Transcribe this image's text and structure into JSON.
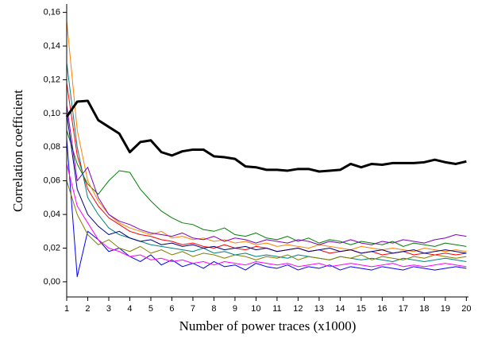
{
  "chart_data": {
    "type": "line",
    "x_label": "Number of power traces (x1000)",
    "y_label": "Correlation coefficient",
    "x": [
      1,
      1.5,
      2,
      2.5,
      3,
      3.5,
      4,
      4.5,
      5,
      5.5,
      6,
      6.5,
      7,
      7.5,
      8,
      8.5,
      9,
      9.5,
      10,
      10.5,
      11,
      11.5,
      12,
      12.5,
      13,
      13.5,
      14,
      14.5,
      15,
      15.5,
      16,
      16.5,
      17,
      17.5,
      18,
      18.5,
      19,
      19.5,
      20
    ],
    "xlim": [
      1,
      20.1
    ],
    "xticks": [
      1,
      2,
      3,
      4,
      5,
      6,
      7,
      8,
      9,
      10,
      11,
      12,
      13,
      14,
      15,
      16,
      17,
      18,
      19,
      20
    ],
    "ylim": [
      -0.009,
      0.165
    ],
    "yticks": [
      {
        "value": 0,
        "label": "0,00"
      },
      {
        "value": 0.02,
        "label": "0,02"
      },
      {
        "value": 0.04,
        "label": "0,04"
      },
      {
        "value": 0.06,
        "label": "0,06"
      },
      {
        "value": 0.08,
        "label": "0,08"
      },
      {
        "value": 0.1,
        "label": "0,10"
      },
      {
        "value": 0.12,
        "label": "0,12"
      },
      {
        "value": 0.14,
        "label": "0,14"
      },
      {
        "value": 0.16,
        "label": "0,16"
      }
    ],
    "series": [
      {
        "color": "#ff0000",
        "width": 1,
        "values": [
          0.118,
          0.075,
          0.055,
          0.045,
          0.038,
          0.034,
          0.03,
          0.028,
          0.027,
          0.025,
          0.024,
          0.022,
          0.023,
          0.021,
          0.02,
          0.022,
          0.02,
          0.019,
          0.021,
          0.02,
          0.018,
          0.019,
          0.02,
          0.018,
          0.019,
          0.017,
          0.018,
          0.019,
          0.017,
          0.018,
          0.016,
          0.017,
          0.018,
          0.016,
          0.017,
          0.016,
          0.017,
          0.016,
          0.017
        ]
      },
      {
        "color": "#0000ff",
        "width": 1,
        "values": [
          0.085,
          0.003,
          0.03,
          0.025,
          0.018,
          0.02,
          0.015,
          0.012,
          0.016,
          0.01,
          0.013,
          0.009,
          0.011,
          0.008,
          0.012,
          0.009,
          0.01,
          0.007,
          0.011,
          0.009,
          0.008,
          0.01,
          0.007,
          0.009,
          0.008,
          0.01,
          0.007,
          0.009,
          0.008,
          0.007,
          0.009,
          0.008,
          0.007,
          0.009,
          0.008,
          0.007,
          0.008,
          0.009,
          0.008
        ]
      },
      {
        "color": "#008000",
        "width": 1,
        "values": [
          0.09,
          0.07,
          0.058,
          0.052,
          0.06,
          0.066,
          0.065,
          0.055,
          0.048,
          0.042,
          0.038,
          0.035,
          0.034,
          0.031,
          0.03,
          0.032,
          0.028,
          0.027,
          0.029,
          0.026,
          0.025,
          0.027,
          0.024,
          0.026,
          0.023,
          0.025,
          0.024,
          0.022,
          0.024,
          0.023,
          0.022,
          0.024,
          0.021,
          0.023,
          0.022,
          0.021,
          0.023,
          0.022,
          0.021
        ]
      },
      {
        "color": "#ff8000",
        "width": 1,
        "values": [
          0.155,
          0.09,
          0.06,
          0.048,
          0.04,
          0.035,
          0.032,
          0.03,
          0.028,
          0.03,
          0.026,
          0.027,
          0.025,
          0.026,
          0.024,
          0.025,
          0.023,
          0.024,
          0.022,
          0.023,
          0.021,
          0.022,
          0.021,
          0.02,
          0.022,
          0.021,
          0.02,
          0.019,
          0.021,
          0.02,
          0.019,
          0.02,
          0.019,
          0.018,
          0.02,
          0.019,
          0.018,
          0.019,
          0.018
        ]
      },
      {
        "color": "#ff00ff",
        "width": 1,
        "values": [
          0.07,
          0.045,
          0.035,
          0.025,
          0.02,
          0.018,
          0.015,
          0.016,
          0.013,
          0.014,
          0.012,
          0.013,
          0.011,
          0.012,
          0.01,
          0.012,
          0.011,
          0.01,
          0.012,
          0.011,
          0.01,
          0.011,
          0.009,
          0.01,
          0.011,
          0.009,
          0.01,
          0.011,
          0.01,
          0.009,
          0.01,
          0.011,
          0.009,
          0.01,
          0.009,
          0.01,
          0.011,
          0.01,
          0.009
        ]
      },
      {
        "color": "#8000c0",
        "width": 1,
        "values": [
          0.105,
          0.06,
          0.068,
          0.05,
          0.04,
          0.036,
          0.034,
          0.031,
          0.029,
          0.028,
          0.027,
          0.029,
          0.026,
          0.025,
          0.027,
          0.024,
          0.026,
          0.025,
          0.023,
          0.025,
          0.024,
          0.023,
          0.025,
          0.024,
          0.022,
          0.024,
          0.023,
          0.025,
          0.023,
          0.022,
          0.024,
          0.023,
          0.025,
          0.024,
          0.023,
          0.025,
          0.026,
          0.028,
          0.027
        ]
      },
      {
        "color": "#008080",
        "width": 1,
        "values": [
          0.13,
          0.08,
          0.05,
          0.04,
          0.032,
          0.028,
          0.026,
          0.024,
          0.022,
          0.021,
          0.02,
          0.019,
          0.018,
          0.02,
          0.017,
          0.018,
          0.016,
          0.017,
          0.015,
          0.016,
          0.015,
          0.014,
          0.016,
          0.015,
          0.014,
          0.013,
          0.015,
          0.014,
          0.013,
          0.014,
          0.013,
          0.012,
          0.014,
          0.013,
          0.012,
          0.013,
          0.014,
          0.013,
          0.012
        ]
      },
      {
        "color": "#808000",
        "width": 1,
        "values": [
          0.06,
          0.04,
          0.028,
          0.022,
          0.025,
          0.02,
          0.018,
          0.021,
          0.017,
          0.019,
          0.016,
          0.018,
          0.015,
          0.017,
          0.016,
          0.014,
          0.016,
          0.015,
          0.013,
          0.015,
          0.014,
          0.016,
          0.013,
          0.015,
          0.014,
          0.013,
          0.015,
          0.014,
          0.016,
          0.013,
          0.015,
          0.014,
          0.013,
          0.015,
          0.014,
          0.016,
          0.015,
          0.014,
          0.015
        ]
      },
      {
        "color": "#000080",
        "width": 1,
        "values": [
          0.1,
          0.055,
          0.04,
          0.033,
          0.028,
          0.03,
          0.026,
          0.024,
          0.025,
          0.022,
          0.023,
          0.021,
          0.022,
          0.02,
          0.021,
          0.019,
          0.02,
          0.021,
          0.019,
          0.02,
          0.018,
          0.019,
          0.02,
          0.018,
          0.019,
          0.02,
          0.018,
          0.019,
          0.017,
          0.018,
          0.019,
          0.017,
          0.018,
          0.019,
          0.017,
          0.018,
          0.019,
          0.018,
          0.017
        ]
      },
      {
        "color": "#000000",
        "width": 3,
        "values": [
          0.098,
          0.107,
          0.1075,
          0.096,
          0.092,
          0.088,
          0.077,
          0.083,
          0.084,
          0.077,
          0.075,
          0.0775,
          0.0785,
          0.0785,
          0.0745,
          0.074,
          0.073,
          0.0685,
          0.068,
          0.0665,
          0.0665,
          0.066,
          0.067,
          0.067,
          0.0655,
          0.066,
          0.0665,
          0.07,
          0.068,
          0.07,
          0.0695,
          0.0705,
          0.0705,
          0.0705,
          0.071,
          0.0725,
          0.071,
          0.07,
          0.0715
        ]
      }
    ]
  }
}
